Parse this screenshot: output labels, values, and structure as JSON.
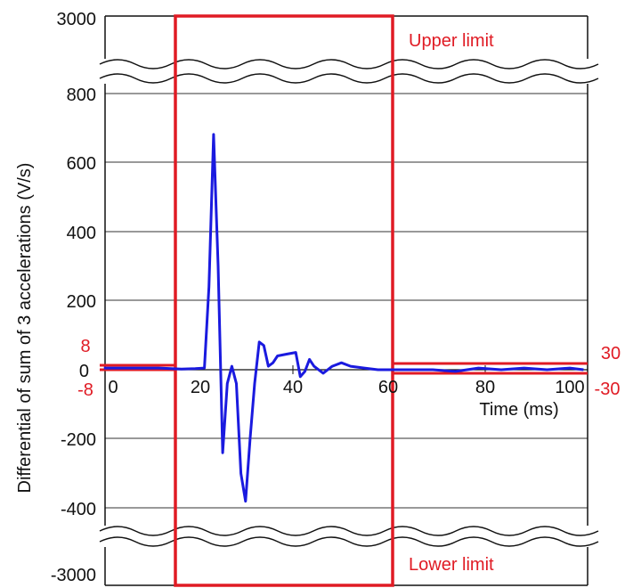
{
  "colors": {
    "series": "#1a1adf",
    "limit": "#e01b24",
    "grid": "#333333",
    "frame": "#111111",
    "break_band": "#ffffff"
  },
  "chart_data": {
    "type": "line",
    "title": "",
    "xlabel": "Time (ms)",
    "ylabel": "Differential of sum of 3 accelerations (V/s)",
    "xlim": [
      -2,
      103
    ],
    "ylim": [
      -450,
      870
    ],
    "x_ticks": [
      0,
      20,
      40,
      60,
      80,
      100
    ],
    "y_ticks_numeric": [
      800,
      600,
      400,
      200,
      0,
      -200,
      -400
    ],
    "y_tick_labels": {
      "top": "3000",
      "v800": "800",
      "v600": "600",
      "v400": "400",
      "v200": "200",
      "v0": "0",
      "vm200": "-200",
      "vm400": "-400",
      "bottom": "-3000"
    },
    "x_tick_labels": [
      "0",
      "20",
      "40",
      "60",
      "80",
      "100"
    ],
    "axis_breaks": [
      "between 800 and 3000",
      "between -400 and -3000"
    ],
    "grid": true,
    "series": [
      {
        "x": [
          -2,
          0,
          5,
          10,
          15,
          18,
          20,
          21,
          22,
          23,
          24,
          25,
          26,
          27,
          28,
          29,
          30,
          31,
          32,
          33,
          34,
          35,
          36,
          38,
          40,
          41,
          42,
          43,
          44,
          46,
          48,
          50,
          52,
          55,
          58,
          60,
          65,
          70,
          75,
          80,
          85,
          90,
          95,
          100,
          103
        ],
        "y": [
          5,
          5,
          5,
          5,
          2,
          3,
          5,
          240,
          680,
          300,
          -240,
          -40,
          10,
          -40,
          -300,
          -380,
          -200,
          -40,
          80,
          70,
          10,
          20,
          40,
          45,
          50,
          -20,
          -5,
          30,
          10,
          -10,
          10,
          20,
          10,
          5,
          0,
          0,
          0,
          0,
          -5,
          5,
          0,
          5,
          0,
          5,
          0
        ]
      }
    ],
    "limits": [
      {
        "label": "Upper limit",
        "segments": [
          {
            "x_from": -2,
            "x_to": 15,
            "y": 8
          },
          {
            "x_from": 15,
            "x_to": 60,
            "y": 3000
          },
          {
            "x_from": 60,
            "x_to": 103,
            "y": 30
          }
        ]
      },
      {
        "label": "Lower limit",
        "segments": [
          {
            "x_from": -2,
            "x_to": 15,
            "y": -8
          },
          {
            "x_from": 15,
            "x_to": 60,
            "y": -3000
          },
          {
            "x_from": 60,
            "x_to": 103,
            "y": -30
          }
        ]
      }
    ],
    "limit_value_labels": {
      "left_upper": "8",
      "left_lower": "-8",
      "right_upper": "30",
      "right_lower": "-30"
    },
    "annotations": {
      "upper_limit": "Upper limit",
      "lower_limit": "Lower limit"
    }
  }
}
